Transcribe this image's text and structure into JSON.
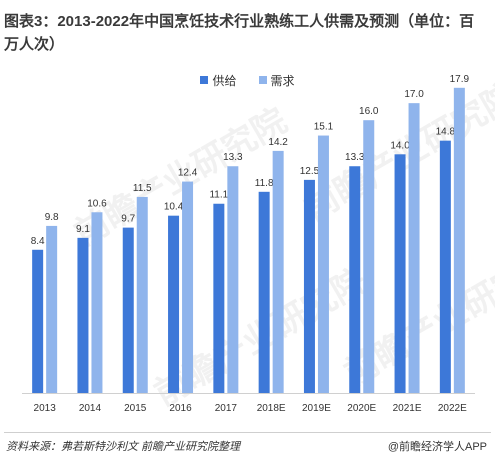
{
  "title": "图表3：2013-2022年中国烹饪技术行业熟练工人供需及预测（单位：百万人次）",
  "source": "资料来源：弗若斯特沙利文  前瞻产业研究院整理",
  "brand": "@前瞻经济学人APP",
  "watermark": "前瞻产业研究院",
  "colors": {
    "supply": "#3d78d8",
    "demand": "#8fb4ec",
    "axis": "#d0d0d0"
  },
  "chart_data": {
    "type": "bar",
    "title": "图表3：2013-2022年中国烹饪技术行业熟练工人供需及预测（单位：百万人次）",
    "categories": [
      "2013",
      "2014",
      "2015",
      "2016",
      "2017",
      "2018E",
      "2019E",
      "2020E",
      "2021E",
      "2022E"
    ],
    "series": [
      {
        "name": "供给",
        "values": [
          8.4,
          9.1,
          9.7,
          10.4,
          11.1,
          11.8,
          12.5,
          13.3,
          14.0,
          14.8
        ]
      },
      {
        "name": "需求",
        "values": [
          9.8,
          10.6,
          11.5,
          12.4,
          13.3,
          14.2,
          15.1,
          16.0,
          17.0,
          17.9
        ]
      }
    ],
    "ylim": [
      0,
      20
    ],
    "xlabel": "",
    "ylabel": "",
    "legend": "top-center",
    "grid": false
  }
}
